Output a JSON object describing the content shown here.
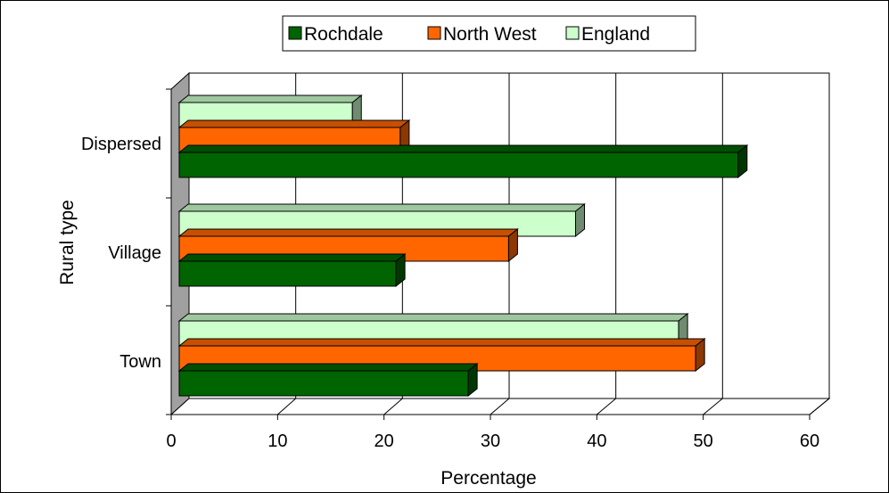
{
  "chart_data": {
    "type": "bar",
    "orientation": "horizontal",
    "categories": [
      "Dispersed",
      "Village",
      "Town"
    ],
    "series": [
      {
        "name": "Rochdale",
        "values": [
          52.6,
          20.4,
          27.2
        ],
        "color": "#006400"
      },
      {
        "name": "North West",
        "values": [
          20.8,
          31.0,
          48.6
        ],
        "color": "#ff6600"
      },
      {
        "name": "England",
        "values": [
          16.3,
          37.3,
          47.0
        ],
        "color": "#ccffcc"
      }
    ],
    "xlabel": "Percentage",
    "ylabel": "Rural type",
    "xlim": [
      0,
      60
    ],
    "xticks": [
      "0",
      "10",
      "20",
      "30",
      "40",
      "50",
      "60"
    ],
    "grid": true,
    "legend_position": "top"
  }
}
